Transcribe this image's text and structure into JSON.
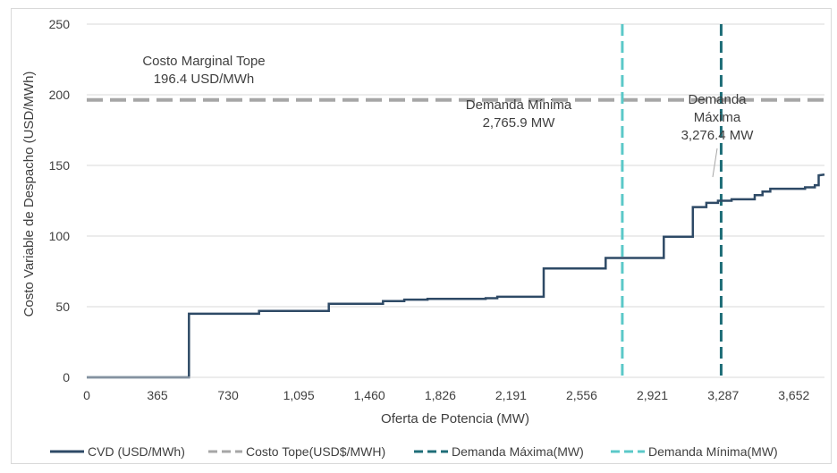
{
  "chart_data": {
    "type": "line",
    "title": "",
    "xlabel": "Oferta de Potencia (MW)",
    "ylabel": "Costo Variable de Despacho  (USD/MWh)",
    "xlim": [
      0,
      3810
    ],
    "ylim": [
      0,
      250
    ],
    "x_ticks": [
      "0",
      "365",
      "730",
      "1,095",
      "1,460",
      "1,826",
      "2,191",
      "2,556",
      "2,921",
      "3,287",
      "3,652"
    ],
    "x_tick_values": [
      0,
      365,
      730,
      1095,
      1460,
      1826,
      2191,
      2556,
      2921,
      3287,
      3652
    ],
    "y_ticks": [
      "0",
      "50",
      "100",
      "150",
      "200",
      "250"
    ],
    "y_tick_values": [
      0,
      50,
      100,
      150,
      200,
      250
    ],
    "grid": "horizontal",
    "legend_position": "bottom",
    "colors": {
      "cvd": "#2e4a66",
      "costo_tope": "#a6a6a6",
      "demanda_maxima": "#1f6e78",
      "demanda_minima": "#5bc8c8",
      "grid": "#d9d9d9"
    },
    "series": [
      {
        "name": "CVD (USD/MWh)",
        "style": "step",
        "points": [
          [
            0,
            0
          ],
          [
            528,
            0
          ],
          [
            528,
            45
          ],
          [
            890,
            45
          ],
          [
            890,
            47
          ],
          [
            1250,
            47
          ],
          [
            1250,
            52
          ],
          [
            1530,
            52
          ],
          [
            1530,
            54
          ],
          [
            1640,
            54
          ],
          [
            1640,
            55
          ],
          [
            1760,
            55
          ],
          [
            1760,
            55.5
          ],
          [
            2060,
            55.5
          ],
          [
            2060,
            56
          ],
          [
            2120,
            56
          ],
          [
            2120,
            57
          ],
          [
            2360,
            57
          ],
          [
            2360,
            77
          ],
          [
            2680,
            77
          ],
          [
            2680,
            84.5
          ],
          [
            2980,
            84.5
          ],
          [
            2980,
            99.5
          ],
          [
            3130,
            99.5
          ],
          [
            3130,
            120.5
          ],
          [
            3200,
            120.5
          ],
          [
            3200,
            123.5
          ],
          [
            3260,
            123.5
          ],
          [
            3260,
            125
          ],
          [
            3330,
            125
          ],
          [
            3330,
            126
          ],
          [
            3450,
            126
          ],
          [
            3450,
            129
          ],
          [
            3490,
            129
          ],
          [
            3490,
            131.5
          ],
          [
            3530,
            131.5
          ],
          [
            3530,
            133.5
          ],
          [
            3710,
            133.5
          ],
          [
            3710,
            134.5
          ],
          [
            3760,
            134.5
          ],
          [
            3760,
            136
          ],
          [
            3780,
            136
          ],
          [
            3780,
            143
          ],
          [
            3810,
            143.5
          ]
        ]
      },
      {
        "name": "Costo Tope(USD$/MWH)",
        "style": "dash-horizontal",
        "value": 196.4
      },
      {
        "name": "Demanda Máxima(MW)",
        "style": "dash-vertical",
        "value": 3276.4
      },
      {
        "name": "Demanda Mínima(MW)",
        "style": "dash-vertical",
        "value": 2765.9
      }
    ],
    "annotations": [
      {
        "id": "costo_tope",
        "lines": [
          "Costo Marginal Tope",
          "196.4 USD/MWh"
        ]
      },
      {
        "id": "demanda_minima",
        "lines": [
          "Demanda Mínima",
          "2,765.9 MW"
        ]
      },
      {
        "id": "demanda_maxima",
        "lines": [
          "Demanda",
          "Máxima",
          "3,276.4 MW"
        ]
      }
    ]
  }
}
